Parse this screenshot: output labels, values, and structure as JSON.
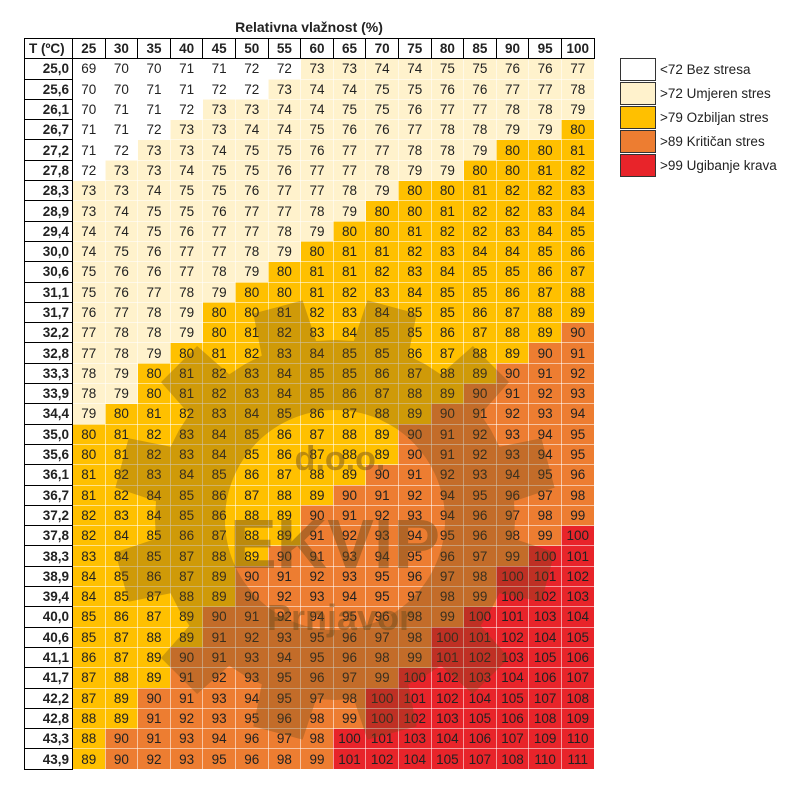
{
  "chart_data": {
    "type": "heatmap",
    "title": "Relativna vlažnost (%)",
    "row_header": "T (ºC)",
    "columns": [
      "25",
      "30",
      "35",
      "40",
      "45",
      "50",
      "55",
      "60",
      "65",
      "70",
      "75",
      "80",
      "85",
      "90",
      "95",
      "100"
    ],
    "rows": [
      "25,0",
      "25,6",
      "26,1",
      "26,7",
      "27,2",
      "27,8",
      "28,3",
      "28,9",
      "29,4",
      "30,0",
      "30,6",
      "31,1",
      "31,7",
      "32,2",
      "32,8",
      "33,3",
      "33,9",
      "34,4",
      "35,0",
      "35,6",
      "36,1",
      "36,7",
      "37,2",
      "37,8",
      "38,3",
      "38,9",
      "39,4",
      "40,0",
      "40,6",
      "41,1",
      "41,7",
      "42,2",
      "42,8",
      "43,3",
      "43,9"
    ],
    "values": [
      [
        69,
        70,
        70,
        71,
        71,
        72,
        72,
        73,
        73,
        74,
        74,
        75,
        75,
        76,
        76,
        77
      ],
      [
        70,
        70,
        71,
        71,
        72,
        72,
        73,
        74,
        74,
        75,
        75,
        76,
        76,
        77,
        77,
        78
      ],
      [
        70,
        71,
        71,
        72,
        73,
        73,
        74,
        74,
        75,
        75,
        76,
        77,
        77,
        78,
        78,
        79
      ],
      [
        71,
        71,
        72,
        73,
        73,
        74,
        74,
        75,
        76,
        76,
        77,
        78,
        78,
        79,
        79,
        80
      ],
      [
        71,
        72,
        73,
        73,
        74,
        75,
        75,
        76,
        77,
        77,
        78,
        78,
        79,
        80,
        80,
        81
      ],
      [
        72,
        73,
        73,
        74,
        75,
        75,
        76,
        77,
        77,
        78,
        79,
        79,
        80,
        80,
        81,
        82
      ],
      [
        73,
        73,
        74,
        75,
        75,
        76,
        77,
        77,
        78,
        79,
        80,
        80,
        81,
        82,
        82,
        83
      ],
      [
        73,
        74,
        75,
        75,
        76,
        77,
        77,
        78,
        79,
        80,
        80,
        81,
        82,
        82,
        83,
        84
      ],
      [
        74,
        74,
        75,
        76,
        77,
        77,
        78,
        79,
        80,
        80,
        81,
        82,
        82,
        83,
        84,
        85
      ],
      [
        74,
        75,
        76,
        77,
        77,
        78,
        79,
        80,
        81,
        81,
        82,
        83,
        84,
        84,
        85,
        86
      ],
      [
        75,
        76,
        76,
        77,
        78,
        79,
        80,
        81,
        81,
        82,
        83,
        84,
        85,
        85,
        86,
        87
      ],
      [
        75,
        76,
        77,
        78,
        79,
        80,
        80,
        81,
        82,
        83,
        84,
        85,
        85,
        86,
        87,
        88
      ],
      [
        76,
        77,
        78,
        79,
        80,
        80,
        81,
        82,
        83,
        84,
        85,
        85,
        86,
        87,
        88,
        89
      ],
      [
        77,
        78,
        78,
        79,
        80,
        81,
        82,
        83,
        84,
        85,
        85,
        86,
        87,
        88,
        89,
        90
      ],
      [
        77,
        78,
        79,
        80,
        81,
        82,
        83,
        84,
        85,
        85,
        86,
        87,
        88,
        89,
        90,
        91
      ],
      [
        78,
        79,
        80,
        81,
        82,
        83,
        84,
        85,
        85,
        86,
        87,
        88,
        89,
        90,
        91,
        92
      ],
      [
        78,
        79,
        80,
        81,
        82,
        83,
        84,
        85,
        86,
        87,
        88,
        89,
        90,
        91,
        92,
        93
      ],
      [
        79,
        80,
        81,
        82,
        83,
        84,
        85,
        86,
        87,
        88,
        89,
        90,
        91,
        92,
        93,
        94
      ],
      [
        80,
        81,
        82,
        83,
        84,
        85,
        86,
        87,
        88,
        89,
        90,
        91,
        92,
        93,
        94,
        95
      ],
      [
        80,
        81,
        82,
        83,
        84,
        85,
        86,
        87,
        88,
        89,
        90,
        91,
        92,
        93,
        94,
        95
      ],
      [
        81,
        82,
        83,
        84,
        85,
        86,
        87,
        88,
        89,
        90,
        91,
        92,
        93,
        94,
        95,
        96
      ],
      [
        81,
        82,
        84,
        85,
        86,
        87,
        88,
        89,
        90,
        91,
        92,
        94,
        95,
        96,
        97,
        98
      ],
      [
        82,
        83,
        84,
        85,
        86,
        88,
        89,
        90,
        91,
        92,
        93,
        94,
        96,
        97,
        98,
        99
      ],
      [
        82,
        84,
        85,
        86,
        87,
        88,
        89,
        91,
        92,
        93,
        94,
        95,
        96,
        98,
        99,
        100
      ],
      [
        83,
        84,
        85,
        87,
        88,
        89,
        90,
        91,
        93,
        94,
        95,
        96,
        97,
        99,
        100,
        101
      ],
      [
        84,
        85,
        86,
        87,
        89,
        90,
        91,
        92,
        93,
        95,
        96,
        97,
        98,
        100,
        101,
        102
      ],
      [
        84,
        85,
        87,
        88,
        89,
        90,
        92,
        93,
        94,
        95,
        97,
        98,
        99,
        100,
        102,
        103
      ],
      [
        85,
        86,
        87,
        89,
        90,
        91,
        92,
        94,
        95,
        96,
        98,
        99,
        100,
        101,
        103,
        104
      ],
      [
        85,
        87,
        88,
        89,
        91,
        92,
        93,
        95,
        96,
        97,
        98,
        100,
        101,
        102,
        104,
        105
      ],
      [
        86,
        87,
        89,
        90,
        91,
        93,
        94,
        95,
        96,
        98,
        99,
        101,
        102,
        103,
        105,
        106
      ],
      [
        87,
        88,
        89,
        91,
        92,
        93,
        95,
        96,
        97,
        99,
        100,
        102,
        103,
        104,
        106,
        107
      ],
      [
        87,
        89,
        90,
        91,
        93,
        94,
        95,
        97,
        98,
        100,
        101,
        102,
        104,
        105,
        107,
        108
      ],
      [
        88,
        89,
        91,
        92,
        93,
        95,
        96,
        98,
        99,
        100,
        102,
        103,
        105,
        106,
        108,
        109
      ],
      [
        88,
        90,
        91,
        93,
        94,
        96,
        97,
        98,
        100,
        101,
        103,
        104,
        106,
        107,
        109,
        110
      ],
      [
        89,
        90,
        92,
        93,
        95,
        96,
        98,
        99,
        101,
        102,
        104,
        105,
        107,
        108,
        110,
        111
      ]
    ],
    "legend": [
      {
        "label": "<72",
        "text": "Bez stresa",
        "color": "#ffffff"
      },
      {
        "label": ">72",
        "text": "Umjeren stres",
        "color": "#fff2cc"
      },
      {
        "label": ">79",
        "text": "Ozbiljan stres",
        "color": "#ffc000"
      },
      {
        "label": ">89",
        "text": "Kritičan stres",
        "color": "#ed7d31"
      },
      {
        "label": ">99",
        "text": "Ugibanje krava",
        "color": "#e8242a"
      }
    ],
    "thresholds": [
      72,
      79,
      89,
      99
    ],
    "legend_position": "right"
  },
  "watermark": {
    "line1": "d.o.o.",
    "line2": "EKVIP",
    "line3": "Prnjavor"
  }
}
